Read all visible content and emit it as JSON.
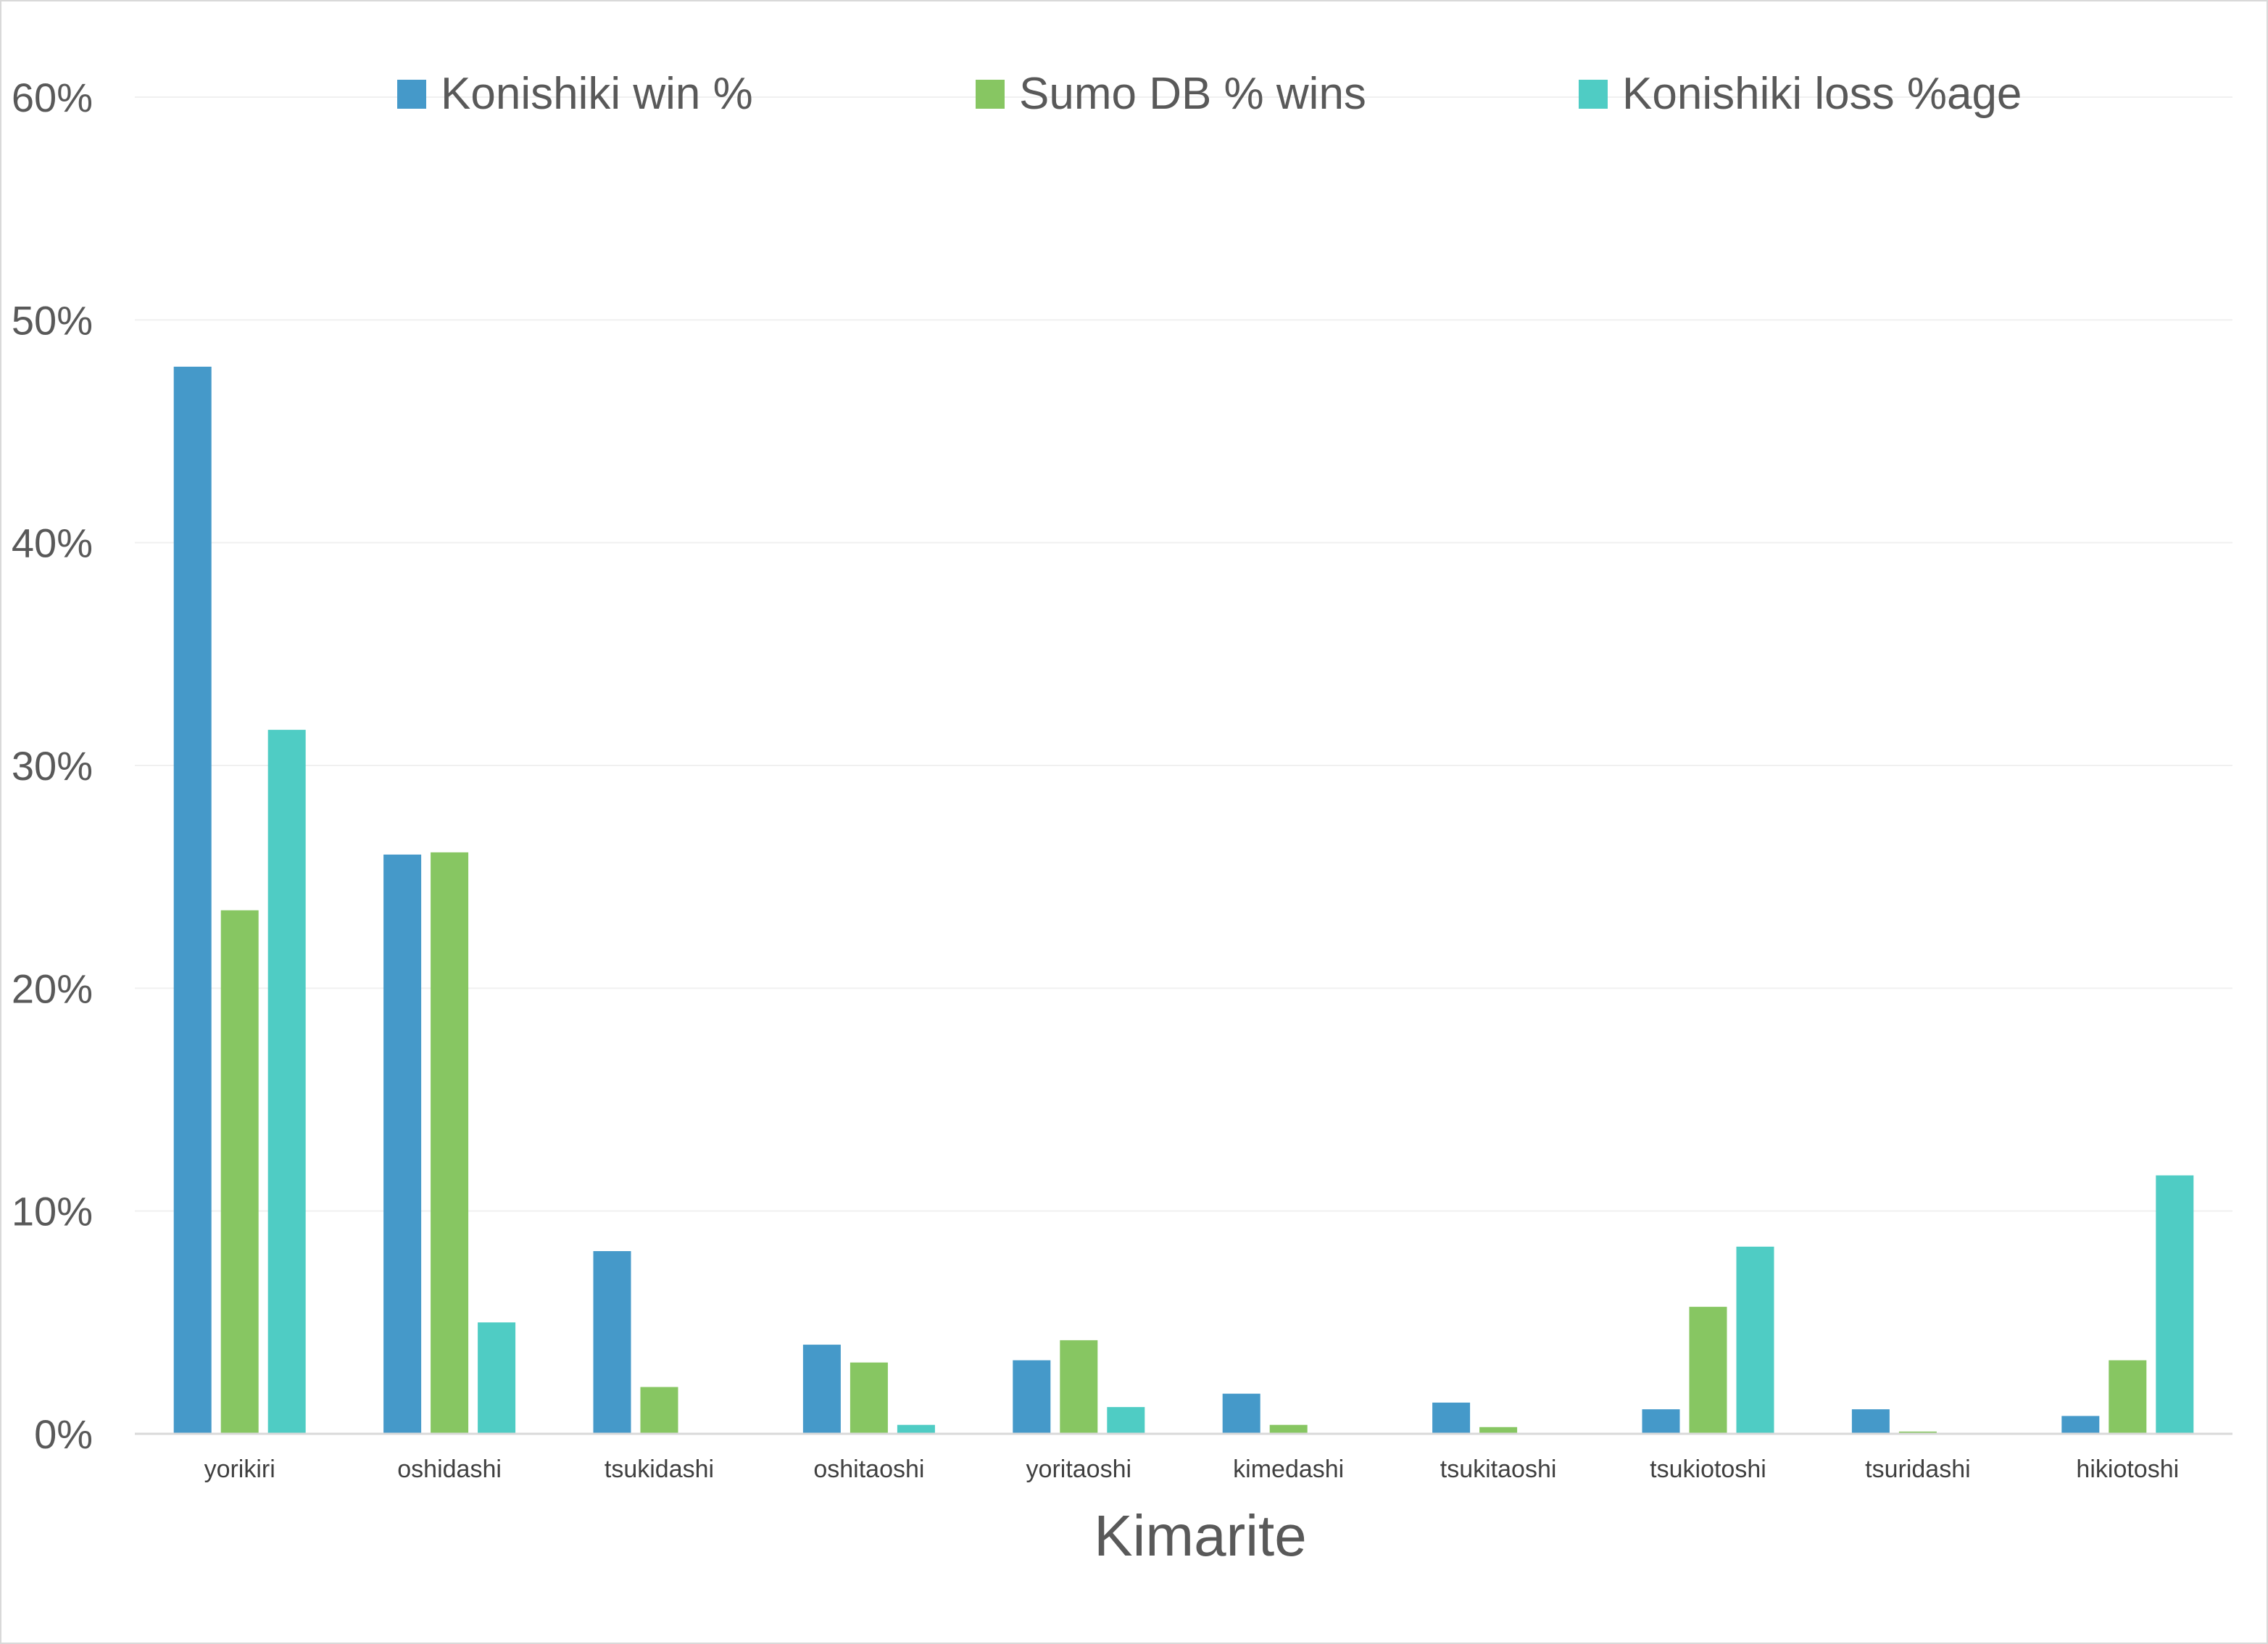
{
  "chart_data": {
    "type": "bar",
    "title": "",
    "xlabel": "Kimarite",
    "ylabel": "",
    "ylim": [
      0,
      0.6
    ],
    "yticks": [
      0,
      0.1,
      0.2,
      0.3,
      0.4,
      0.5,
      0.6
    ],
    "ytick_labels": [
      "0%",
      "10%",
      "20%",
      "30%",
      "40%",
      "50%",
      "60%"
    ],
    "grid": true,
    "legend_position": "top",
    "categories": [
      "yorikiri",
      "oshidashi",
      "tsukidashi",
      "oshitaoshi",
      "yoritaoshi",
      "kimedashi",
      "tsukitaoshi",
      "tsukiotoshi",
      "tsuridashi",
      "hikiotoshi"
    ],
    "series": [
      {
        "name": "Konishiki win %",
        "color": "#4599c9",
        "values": [
          0.479,
          0.26,
          0.082,
          0.04,
          0.033,
          0.018,
          0.014,
          0.011,
          0.011,
          0.008
        ]
      },
      {
        "name": "Sumo DB % wins",
        "color": "#87c662",
        "values": [
          0.235,
          0.261,
          0.021,
          0.032,
          0.042,
          0.004,
          0.003,
          0.057,
          0.001,
          0.033
        ]
      },
      {
        "name": "Konishiki loss %age",
        "color": "#4fccc4",
        "values": [
          0.316,
          0.05,
          0,
          0.004,
          0.012,
          0,
          0,
          0.084,
          0,
          0.116
        ]
      }
    ]
  }
}
